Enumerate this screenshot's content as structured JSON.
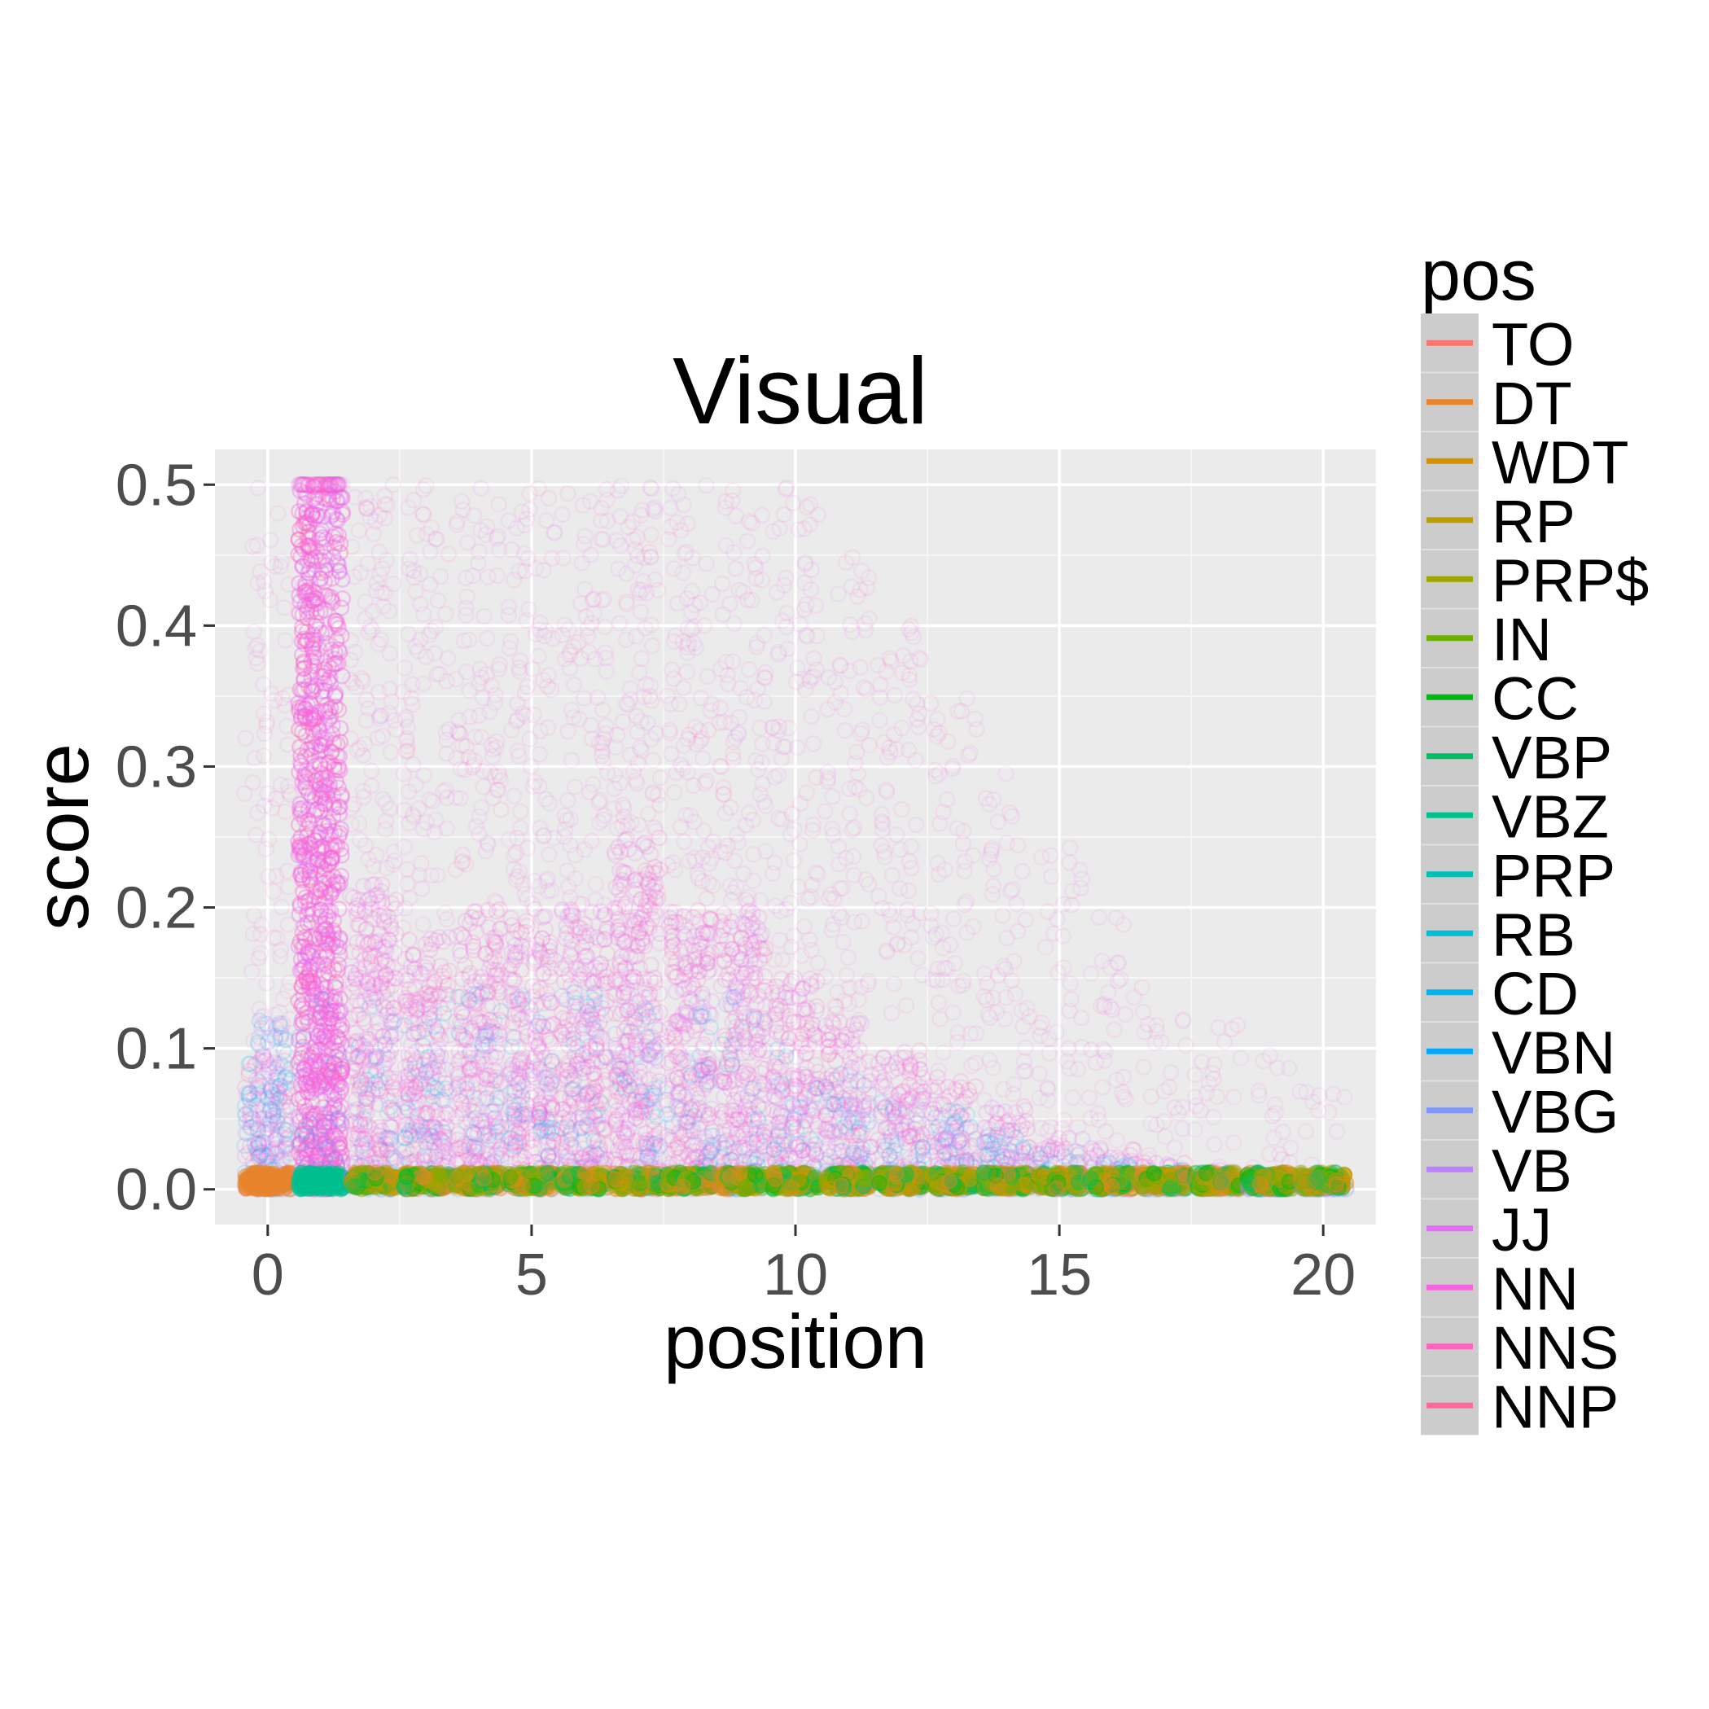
{
  "chart_data": {
    "type": "scatter",
    "title": "Visual",
    "xlabel": "position",
    "ylabel": "score",
    "xlim": [
      -1,
      21
    ],
    "ylim": [
      -0.025,
      0.525
    ],
    "x_ticks": [
      0,
      5,
      10,
      15,
      20
    ],
    "x_tick_labels": [
      "0",
      "5",
      "10",
      "15",
      "20"
    ],
    "y_ticks": [
      0.0,
      0.1,
      0.2,
      0.3,
      0.4,
      0.5
    ],
    "y_tick_labels": [
      "0.0",
      "0.1",
      "0.2",
      "0.3",
      "0.4",
      "0.5"
    ],
    "grid": true,
    "legend": {
      "title": "pos",
      "position": "right",
      "entries": [
        {
          "name": "TO",
          "color": "#F8766D"
        },
        {
          "name": "DT",
          "color": "#E9842C"
        },
        {
          "name": "WDT",
          "color": "#D69100"
        },
        {
          "name": "RP",
          "color": "#BC9D00"
        },
        {
          "name": "PRP$",
          "color": "#9CA700"
        },
        {
          "name": "IN",
          "color": "#6FB000"
        },
        {
          "name": "CC",
          "color": "#00B813"
        },
        {
          "name": "VBP",
          "color": "#00BD61"
        },
        {
          "name": "VBZ",
          "color": "#00C08E"
        },
        {
          "name": "PRP",
          "color": "#00C0B4"
        },
        {
          "name": "RB",
          "color": "#00BDD4"
        },
        {
          "name": "CD",
          "color": "#00B5EE"
        },
        {
          "name": "VBN",
          "color": "#00A7FF"
        },
        {
          "name": "VBG",
          "color": "#7F96FF"
        },
        {
          "name": "VB",
          "color": "#BC81FF"
        },
        {
          "name": "JJ",
          "color": "#E26EF7"
        },
        {
          "name": "NN",
          "color": "#F863DF"
        },
        {
          "name": "NNS",
          "color": "#FF62BF"
        },
        {
          "name": "NNP",
          "color": "#FF6A9A"
        }
      ]
    },
    "density_profile": {
      "positions": [
        0,
        1,
        2,
        3,
        4,
        5,
        6,
        7,
        8,
        9,
        10,
        11,
        12,
        13,
        14,
        15,
        16,
        17,
        18,
        19,
        20
      ],
      "approx_max_score": [
        0.5,
        0.5,
        0.5,
        0.5,
        0.5,
        0.5,
        0.5,
        0.5,
        0.5,
        0.5,
        0.5,
        0.45,
        0.4,
        0.35,
        0.3,
        0.25,
        0.2,
        0.15,
        0.12,
        0.1,
        0.07
      ],
      "dense_band_top": [
        0.1,
        0.5,
        0.22,
        0.18,
        0.2,
        0.2,
        0.2,
        0.25,
        0.2,
        0.2,
        0.15,
        0.12,
        0.1,
        0.08,
        0.06,
        0.04,
        0.03,
        0.02,
        0.015,
        0.01,
        0.008
      ]
    }
  }
}
